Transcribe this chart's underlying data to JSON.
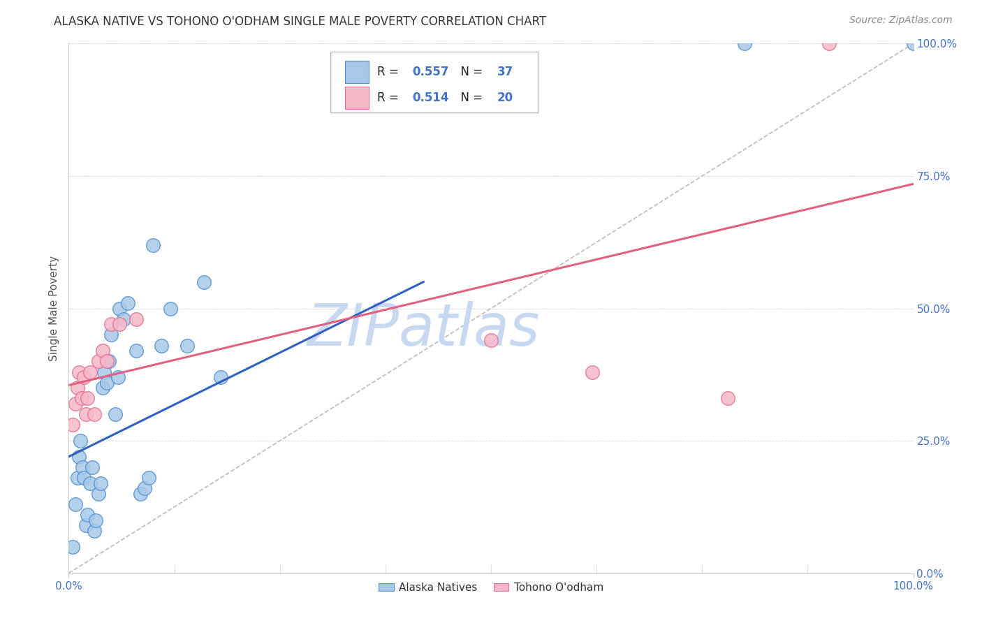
{
  "title": "ALASKA NATIVE VS TOHONO O'ODHAM SINGLE MALE POVERTY CORRELATION CHART",
  "source": "Source: ZipAtlas.com",
  "ylabel": "Single Male Poverty",
  "legend_label1": "Alaska Natives",
  "legend_label2": "Tohono O'odham",
  "R1": "0.557",
  "N1": "37",
  "R2": "0.514",
  "N2": "20",
  "color_blue_fill": "#a8c8e8",
  "color_blue_edge": "#5090d0",
  "color_pink_fill": "#f5b8c8",
  "color_pink_edge": "#e07090",
  "color_line_blue": "#3060c0",
  "color_line_pink": "#e06080",
  "color_diag": "#aaaaaa",
  "watermark": "ZIPatlas",
  "watermark_color": "#c8d8f0",
  "alaska_x": [
    0.005,
    0.008,
    0.01,
    0.012,
    0.014,
    0.016,
    0.018,
    0.02,
    0.022,
    0.025,
    0.028,
    0.03,
    0.032,
    0.035,
    0.038,
    0.04,
    0.042,
    0.045,
    0.048,
    0.05,
    0.055,
    0.058,
    0.06,
    0.065,
    0.07,
    0.08,
    0.085,
    0.09,
    0.095,
    0.1,
    0.11,
    0.12,
    0.14,
    0.16,
    0.18,
    0.8,
    1.0
  ],
  "alaska_y": [
    0.05,
    0.13,
    0.18,
    0.22,
    0.25,
    0.2,
    0.18,
    0.09,
    0.11,
    0.17,
    0.2,
    0.08,
    0.1,
    0.15,
    0.17,
    0.35,
    0.38,
    0.36,
    0.4,
    0.45,
    0.3,
    0.37,
    0.5,
    0.48,
    0.51,
    0.42,
    0.15,
    0.16,
    0.18,
    0.62,
    0.43,
    0.5,
    0.43,
    0.55,
    0.37,
    1.0,
    1.0
  ],
  "tohono_x": [
    0.005,
    0.008,
    0.01,
    0.012,
    0.015,
    0.018,
    0.02,
    0.022,
    0.025,
    0.03,
    0.035,
    0.04,
    0.045,
    0.05,
    0.06,
    0.08,
    0.5,
    0.62,
    0.78,
    0.9
  ],
  "tohono_y": [
    0.28,
    0.32,
    0.35,
    0.38,
    0.33,
    0.37,
    0.3,
    0.33,
    0.38,
    0.3,
    0.4,
    0.42,
    0.4,
    0.47,
    0.47,
    0.48,
    0.44,
    0.38,
    0.33,
    1.0
  ],
  "blue_line_x": [
    0.0,
    0.42
  ],
  "blue_line_y": [
    0.22,
    0.55
  ],
  "pink_line_x": [
    0.0,
    1.0
  ],
  "pink_line_y": [
    0.355,
    0.735
  ],
  "diag_line_x": [
    0.0,
    1.0
  ],
  "diag_line_y": [
    0.0,
    1.0
  ],
  "xlim": [
    0.0,
    1.0
  ],
  "ylim": [
    0.0,
    1.0
  ],
  "xticks": [
    0.0,
    1.0
  ],
  "xtick_labels": [
    "0.0%",
    "100.0%"
  ],
  "yticks": [
    0.0,
    0.25,
    0.5,
    0.75,
    1.0
  ],
  "ytick_labels": [
    "0.0%",
    "25.0%",
    "50.0%",
    "75.0%",
    "100.0%"
  ]
}
